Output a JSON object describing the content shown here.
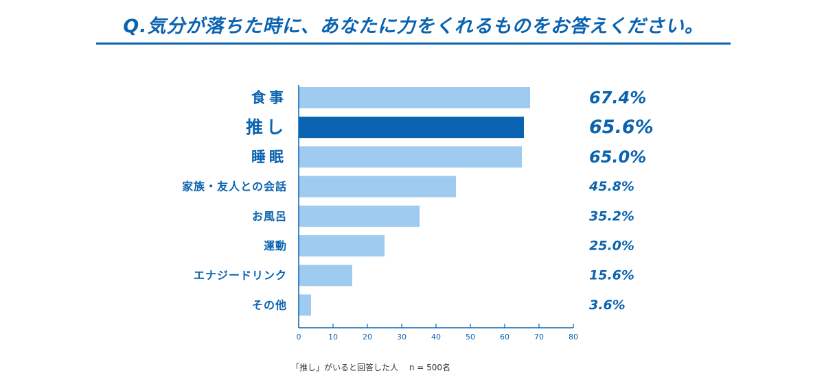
{
  "question": "Q.気分が落ちた時に、あなたに力をくれるものをお答えください。",
  "footnote": "「推し」がいると回答した人　 n = 500名",
  "colors": {
    "accent": "#0a63b0",
    "bar": "#9fcbf0",
    "highlight": "#0a63b0",
    "axis": "#0a63b0"
  },
  "chart_data": {
    "type": "bar",
    "orientation": "horizontal",
    "categories": [
      "食事",
      "推し",
      "睡眠",
      "家族・友人との会話",
      "お風呂",
      "運動",
      "エナジードリンク",
      "その他"
    ],
    "values": [
      67.4,
      65.6,
      65.0,
      45.8,
      35.2,
      25.0,
      15.6,
      3.6
    ],
    "value_labels": [
      "67.4%",
      "65.6%",
      "65.0%",
      "45.8%",
      "35.2%",
      "25.0%",
      "15.6%",
      "3.6%"
    ],
    "highlight_category": "推し",
    "xlim": [
      0,
      80
    ],
    "xticks": [
      0,
      10,
      20,
      30,
      40,
      50,
      60,
      70,
      80
    ],
    "grid": false,
    "legend": "none"
  }
}
